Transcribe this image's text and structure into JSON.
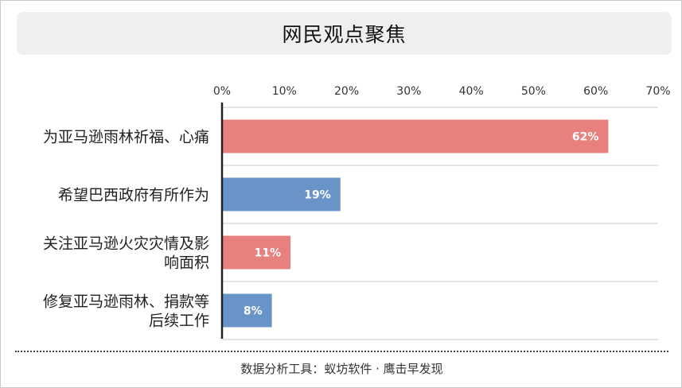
{
  "title": "网民观点聚焦",
  "footer": "数据分析工具：蚁坊软件 · 鹰击早发现",
  "chart_data": {
    "type": "bar",
    "orientation": "horizontal",
    "categories": [
      [
        "为亚马逊雨林祈福、心痛"
      ],
      [
        "希望巴西政府有所作为"
      ],
      [
        "关注亚马逊火灾灾情及影",
        "响面积"
      ],
      [
        "修复亚马逊雨林、捐款等",
        "后续工作"
      ]
    ],
    "values": [
      62,
      19,
      11,
      8
    ],
    "value_labels": [
      "62%",
      "19%",
      "11%",
      "8%"
    ],
    "bar_colors": [
      "#e8807e",
      "#6994c8",
      "#e8807e",
      "#6994c8"
    ],
    "xlim": [
      0,
      70
    ],
    "ticks": [
      0,
      10,
      20,
      30,
      40,
      50,
      60,
      70
    ],
    "tick_labels": [
      "0%",
      "10%",
      "20%",
      "30%",
      "40%",
      "50%",
      "60%",
      "70%"
    ],
    "axis_position": "top",
    "grid": "horizontal-separators"
  }
}
